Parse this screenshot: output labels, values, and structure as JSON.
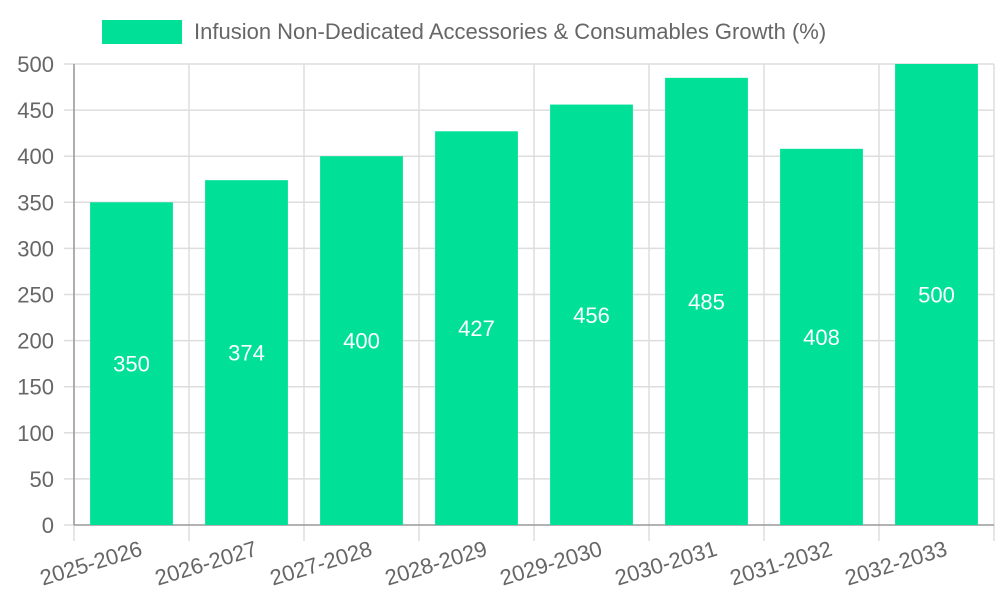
{
  "chart_data": {
    "type": "bar",
    "categories": [
      "2025-2026",
      "2026-2027",
      "2027-2028",
      "2028-2029",
      "2029-2030",
      "2030-2031",
      "2031-2032",
      "2032-2033"
    ],
    "series": [
      {
        "name": "Infusion Non-Dedicated Accessories & Consumables Growth (%)",
        "values": [
          350,
          374,
          400,
          427,
          456,
          485,
          408,
          500
        ]
      }
    ],
    "ylim": [
      0,
      500
    ],
    "yticks": [
      0,
      50,
      100,
      150,
      200,
      250,
      300,
      350,
      400,
      450,
      500
    ],
    "grid": true,
    "legend_position": "top-center",
    "data_labels": true,
    "colors": {
      "bar": "#00E096",
      "grid": "#dddddd",
      "axis": "#999999",
      "tick_text": "#666666",
      "data_label": "#ffffff"
    }
  }
}
